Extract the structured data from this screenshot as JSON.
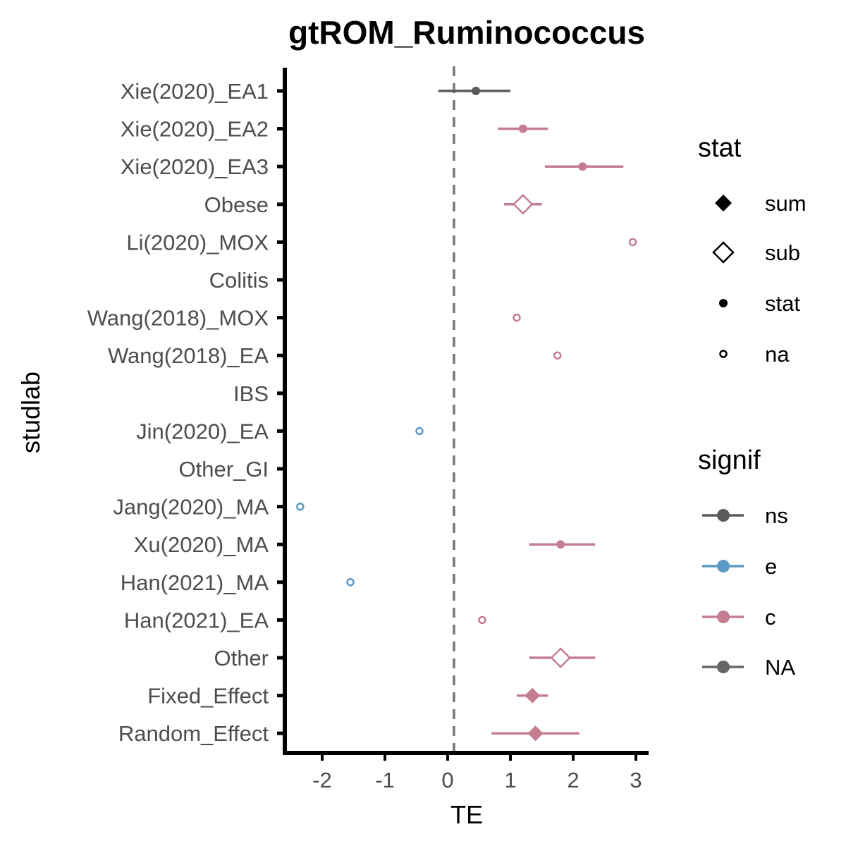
{
  "chart_data": {
    "type": "forest",
    "title": "gtROM_Ruminococcus",
    "xlabel": "TE",
    "ylabel": "studlab",
    "xlim": [
      -2.6,
      3.2
    ],
    "xticks": [
      -2,
      -1,
      0,
      1,
      2,
      3
    ],
    "xtick_labels": [
      "-2",
      "-1",
      "0",
      "1",
      "2",
      "3"
    ],
    "reference_line": 0.1,
    "grid": false,
    "colors": {
      "ns": "#5a5a5a",
      "e": "#5b9ac4",
      "c": "#c47d91",
      "NA": "#666666",
      "refline": "#777777"
    },
    "rows": [
      {
        "studlab": "Xie(2020)_EA1",
        "te": 0.45,
        "lower": -0.15,
        "upper": 1.0,
        "stat": "stat",
        "signif": "ns"
      },
      {
        "studlab": "Xie(2020)_EA2",
        "te": 1.2,
        "lower": 0.8,
        "upper": 1.6,
        "stat": "stat",
        "signif": "c"
      },
      {
        "studlab": "Xie(2020)_EA3",
        "te": 2.15,
        "lower": 1.55,
        "upper": 2.8,
        "stat": "stat",
        "signif": "c"
      },
      {
        "studlab": "Obese",
        "te": 1.2,
        "lower": 0.9,
        "upper": 1.5,
        "stat": "sub",
        "signif": "c"
      },
      {
        "studlab": "Li(2020)_MOX",
        "te": 2.95,
        "lower": null,
        "upper": null,
        "stat": "na",
        "signif": "c"
      },
      {
        "studlab": "Colitis",
        "te": null,
        "lower": null,
        "upper": null,
        "stat": null,
        "signif": null
      },
      {
        "studlab": "Wang(2018)_MOX",
        "te": 1.1,
        "lower": null,
        "upper": null,
        "stat": "na",
        "signif": "c"
      },
      {
        "studlab": "Wang(2018)_EA",
        "te": 1.75,
        "lower": null,
        "upper": null,
        "stat": "na",
        "signif": "c"
      },
      {
        "studlab": "IBS",
        "te": null,
        "lower": null,
        "upper": null,
        "stat": null,
        "signif": null
      },
      {
        "studlab": "Jin(2020)_EA",
        "te": -0.45,
        "lower": null,
        "upper": null,
        "stat": "na",
        "signif": "e"
      },
      {
        "studlab": "Other_GI",
        "te": null,
        "lower": null,
        "upper": null,
        "stat": null,
        "signif": null
      },
      {
        "studlab": "Jang(2020)_MA",
        "te": -2.35,
        "lower": null,
        "upper": null,
        "stat": "na",
        "signif": "e"
      },
      {
        "studlab": "Xu(2020)_MA",
        "te": 1.8,
        "lower": 1.3,
        "upper": 2.35,
        "stat": "stat",
        "signif": "c"
      },
      {
        "studlab": "Han(2021)_MA",
        "te": -1.55,
        "lower": null,
        "upper": null,
        "stat": "na",
        "signif": "e"
      },
      {
        "studlab": "Han(2021)_EA",
        "te": 0.55,
        "lower": null,
        "upper": null,
        "stat": "na",
        "signif": "c"
      },
      {
        "studlab": "Other",
        "te": 1.8,
        "lower": 1.3,
        "upper": 2.35,
        "stat": "sub",
        "signif": "c"
      },
      {
        "studlab": "Fixed_Effect",
        "te": 1.35,
        "lower": 1.1,
        "upper": 1.6,
        "stat": "sum",
        "signif": "c"
      },
      {
        "studlab": "Random_Effect",
        "te": 1.4,
        "lower": 0.7,
        "upper": 2.1,
        "stat": "sum",
        "signif": "c"
      }
    ],
    "legend": {
      "position": "right",
      "stat": {
        "title": "stat",
        "items": [
          "sum",
          "sub",
          "stat",
          "na"
        ]
      },
      "signif": {
        "title": "signif",
        "items": [
          "ns",
          "e",
          "c",
          "NA"
        ]
      }
    }
  }
}
